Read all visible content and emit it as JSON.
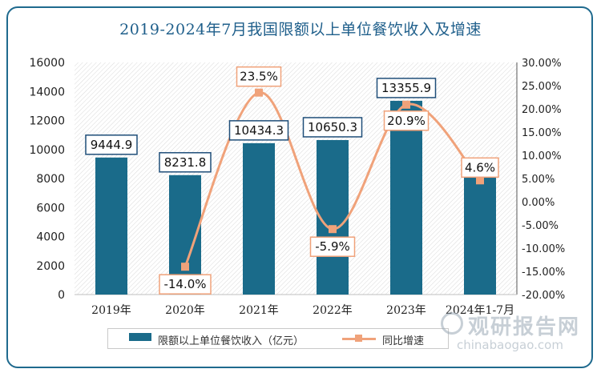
{
  "title": "2019-2024年7月我国限额以上单位餐饮收入及增速",
  "legend": {
    "bar_label": "限额以上单位餐饮收入（亿元）",
    "line_label": "同比增速"
  },
  "watermark": {
    "brand": "观研报告网",
    "url": "chinabaogao.com"
  },
  "colors": {
    "bar": "#1a6b8a",
    "line": "#f0a27a",
    "frame": "#1f6a8e",
    "title": "#1f5f8b"
  },
  "chart_data": {
    "type": "bar",
    "categories": [
      "2019年",
      "2020年",
      "2021年",
      "2022年",
      "2023年",
      "2024年1-7月"
    ],
    "series": [
      {
        "name": "限额以上单位餐饮收入（亿元）",
        "type": "bar",
        "axis": "left",
        "values": [
          9444.9,
          8231.8,
          10434.3,
          10650.3,
          13355.9,
          8800
        ],
        "labels": [
          "9444.9",
          "8231.8",
          "10434.3",
          "10650.3",
          "13355.9",
          ""
        ]
      },
      {
        "name": "同比增速",
        "type": "line",
        "axis": "right",
        "values": [
          null,
          -14.0,
          23.5,
          -5.9,
          20.9,
          4.6
        ],
        "labels": [
          "",
          "-14.0%",
          "23.5%",
          "-5.9%",
          "20.9%",
          "4.6%"
        ]
      }
    ],
    "y_left": {
      "min": 0,
      "max": 16000,
      "step": 2000,
      "ticks": [
        "0",
        "2000",
        "4000",
        "6000",
        "8000",
        "10000",
        "12000",
        "14000",
        "16000"
      ]
    },
    "y_right": {
      "min": -20,
      "max": 30,
      "step": 5,
      "ticks": [
        "-20.00%",
        "-15.00%",
        "-10.00%",
        "-5.00%",
        "0.00%",
        "5.00%",
        "10.00%",
        "15.00%",
        "20.00%",
        "25.00%",
        "30.00%"
      ]
    },
    "grid": false,
    "legend_position": "bottom"
  }
}
